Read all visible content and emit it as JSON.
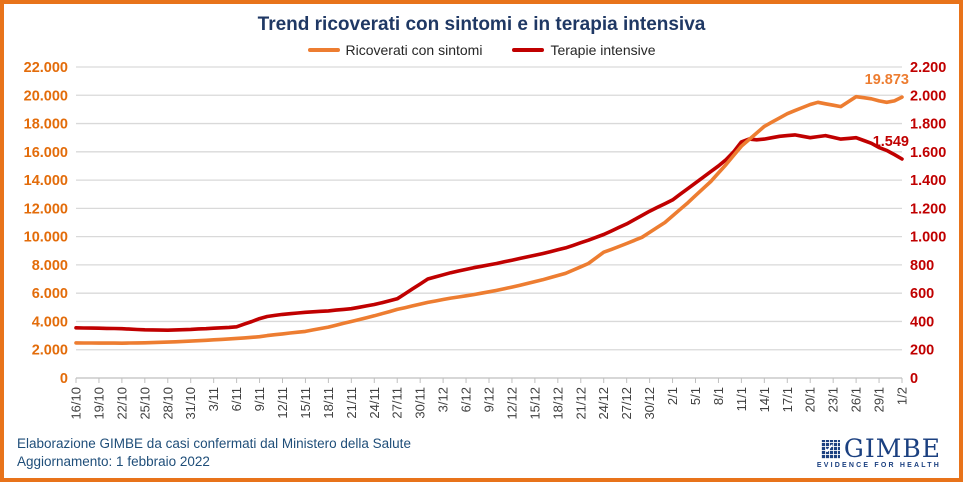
{
  "title": "Trend ricoverati con sintomi e in terapia intensiva",
  "legend": [
    {
      "label": "Ricoverati con sintomi",
      "color": "#ED7D31"
    },
    {
      "label": "Terapie intensive",
      "color": "#C00000"
    }
  ],
  "footer": {
    "line1": "Elaborazione GIMBE da casi confermati dal Ministero della Salute",
    "line2": "Aggiornamento: 1 febbraio 2022"
  },
  "logo": {
    "name": "GIMBE",
    "tagline": "EVIDENCE FOR HEALTH",
    "color": "#1B4080"
  },
  "colors": {
    "border": "#E8731A",
    "title": "#1F3864",
    "footer_text": "#1F4E79",
    "gridline": "#D9D9D9",
    "axis": "#BFBFBF",
    "x_labels": "#404040",
    "left_axis_labels": "#E36C0A",
    "right_axis_labels": "#C00000"
  },
  "chart_data": {
    "type": "line",
    "title": "Trend ricoverati con sintomi e in terapia intensiva",
    "xlabel": "",
    "ylabel_left": "Ricoverati con sintomi",
    "ylabel_right": "Terapie intensive",
    "grid": true,
    "legend_position": "top",
    "x_tick_interval_days": 3,
    "x_tick_labels": [
      "16/10",
      "19/10",
      "22/10",
      "25/10",
      "28/10",
      "31/10",
      "3/11",
      "6/11",
      "9/11",
      "12/11",
      "15/11",
      "18/11",
      "21/11",
      "24/11",
      "27/11",
      "30/11",
      "3/12",
      "6/12",
      "9/12",
      "12/12",
      "15/12",
      "18/12",
      "21/12",
      "24/12",
      "27/12",
      "30/12",
      "2/1",
      "5/1",
      "8/1",
      "11/1",
      "14/1",
      "17/1",
      "20/1",
      "23/1",
      "26/1",
      "29/1",
      "1/2"
    ],
    "left_axis": {
      "min": 0,
      "max": 22000,
      "step": 2000,
      "tick_labels": [
        "0",
        "2.000",
        "4.000",
        "6.000",
        "8.000",
        "10.000",
        "12.000",
        "14.000",
        "16.000",
        "18.000",
        "20.000",
        "22.000"
      ]
    },
    "right_axis": {
      "min": 0,
      "max": 2200,
      "step": 200,
      "tick_labels": [
        "0",
        "200",
        "400",
        "600",
        "800",
        "1.000",
        "1.200",
        "1.400",
        "1.600",
        "1.800",
        "2.000",
        "2.200"
      ]
    },
    "series": [
      {
        "name": "Ricoverati con sintomi",
        "axis": "left",
        "color": "#ED7D31",
        "end_label": "19.873",
        "last_value": 19873,
        "values": [
          2480,
          2477,
          2473,
          2470,
          2468,
          2466,
          2465,
          2473,
          2482,
          2490,
          2507,
          2523,
          2540,
          2563,
          2587,
          2610,
          2640,
          2670,
          2700,
          2733,
          2767,
          2800,
          2840,
          2880,
          2920,
          3000,
          3060,
          3120,
          3180,
          3240,
          3300,
          3400,
          3500,
          3600,
          3733,
          3867,
          4000,
          4133,
          4267,
          4400,
          4550,
          4700,
          4850,
          4975,
          5100,
          5225,
          5350,
          5450,
          5550,
          5650,
          5733,
          5817,
          5900,
          6000,
          6100,
          6200,
          6317,
          6433,
          6550,
          6683,
          6817,
          6950,
          7100,
          7250,
          7400,
          7633,
          7867,
          8100,
          8500,
          8900,
          9100,
          9300,
          9517,
          9733,
          9950,
          10300,
          10650,
          11000,
          11467,
          11933,
          12400,
          12900,
          13400,
          13900,
          14500,
          15100,
          15750,
          16400,
          16867,
          17333,
          17800,
          18100,
          18400,
          18700,
          18917,
          19133,
          19350,
          19500,
          19400,
          19300,
          19200,
          19550,
          19900,
          19825,
          19750,
          19600,
          19500,
          19600,
          19873
        ]
      },
      {
        "name": "Terapie intensive",
        "axis": "right",
        "color": "#C00000",
        "end_label": "1.549",
        "last_value": 1549,
        "values": [
          355,
          354,
          353,
          352,
          351,
          350,
          349,
          346,
          343,
          341,
          340,
          339,
          338,
          340,
          342,
          344,
          347,
          349,
          352,
          355,
          358,
          362,
          381,
          400,
          420,
          435,
          443,
          450,
          455,
          460,
          465,
          468,
          472,
          475,
          480,
          485,
          490,
          500,
          510,
          520,
          533,
          547,
          560,
          595,
          630,
          665,
          700,
          715,
          730,
          745,
          757,
          768,
          780,
          790,
          800,
          810,
          822,
          833,
          845,
          857,
          868,
          880,
          893,
          907,
          920,
          938,
          957,
          975,
          995,
          1015,
          1040,
          1065,
          1090,
          1120,
          1150,
          1180,
          1207,
          1233,
          1260,
          1300,
          1340,
          1380,
          1420,
          1460,
          1500,
          1545,
          1600,
          1670,
          1690,
          1685,
          1690,
          1700,
          1710,
          1715,
          1720,
          1710,
          1700,
          1708,
          1715,
          1702,
          1690,
          1695,
          1700,
          1680,
          1660,
          1630,
          1610,
          1580,
          1549
        ]
      }
    ]
  }
}
